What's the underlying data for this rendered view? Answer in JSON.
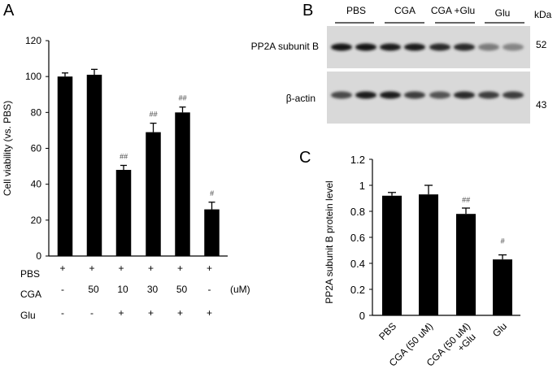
{
  "panels": {
    "A": {
      "letter": "A"
    },
    "B": {
      "letter": "B"
    },
    "C": {
      "letter": "C"
    }
  },
  "chart_data": [
    {
      "panel": "A",
      "type": "bar",
      "ylabel": "Cell viability (vs. PBS)",
      "ylim": [
        0,
        120
      ],
      "yticks": [
        0,
        20,
        40,
        60,
        80,
        100,
        120
      ],
      "grid": false,
      "categories": [
        "1",
        "2",
        "3",
        "4",
        "5",
        "6"
      ],
      "values": [
        100,
        101,
        48,
        69,
        80,
        26
      ],
      "errors": [
        2,
        3,
        2.5,
        5,
        3,
        4
      ],
      "annotations": [
        "",
        "",
        "##",
        "##",
        "##",
        "#"
      ],
      "condition_rows": [
        {
          "label": "PBS",
          "values": [
            "+",
            "+",
            "+",
            "+",
            "+",
            "+"
          ],
          "unit": ""
        },
        {
          "label": "CGA",
          "values": [
            "-",
            "50",
            "10",
            "30",
            "50",
            "-"
          ],
          "unit": "(uM)"
        },
        {
          "label": "Glu",
          "values": [
            "-",
            "-",
            "+",
            "+",
            "+",
            "+"
          ],
          "unit": ""
        }
      ],
      "bar_color": "#000000"
    },
    {
      "panel": "B",
      "type": "table",
      "title": "Western blot",
      "group_labels": [
        "PBS",
        "CGA",
        "CGA +Glu",
        "Glu"
      ],
      "unit_label": "kDa",
      "rows": [
        {
          "label": "PP2A subunit B",
          "kda": "52",
          "band_intensity": [
            0.95,
            0.95,
            0.9,
            0.92,
            0.85,
            0.85,
            0.45,
            0.4
          ]
        },
        {
          "label": "β-actin",
          "kda": "43",
          "band_intensity": [
            0.7,
            0.92,
            0.9,
            0.75,
            0.65,
            0.85,
            0.75,
            0.75
          ]
        }
      ]
    },
    {
      "panel": "C",
      "type": "bar",
      "ylabel": "PP2A subunit B protein level",
      "ylim": [
        0,
        1.2
      ],
      "yticks": [
        "0",
        "0.2",
        "0.4",
        "0.6",
        "0.8",
        "1",
        "1.2"
      ],
      "grid": false,
      "categories": [
        "PBS",
        "CGA (50 uM)",
        "CGA (50 uM) +Glu",
        "Glu"
      ],
      "category_lines": [
        [
          "PBS"
        ],
        [
          "CGA (50 uM)"
        ],
        [
          "CGA (50 uM)",
          "+Glu"
        ],
        [
          "Glu"
        ]
      ],
      "values": [
        0.92,
        0.93,
        0.78,
        0.43
      ],
      "errors": [
        0.025,
        0.07,
        0.045,
        0.035
      ],
      "annotations": [
        "",
        "",
        "##",
        "#"
      ],
      "bar_color": "#000000"
    }
  ]
}
